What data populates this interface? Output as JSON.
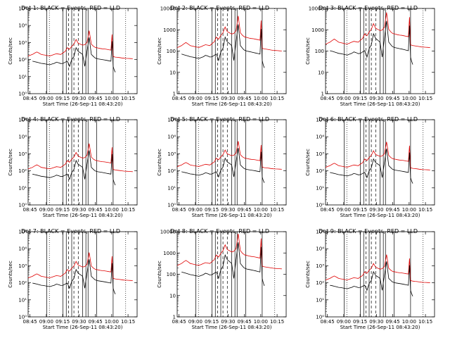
{
  "chart_data": [
    {
      "type": "line",
      "title": "Det 1: BLACK = Events, RED = LLD",
      "yscale": "log",
      "ylim_exp": [
        0,
        5
      ],
      "ytick_labels": [
        "10⁰",
        "10¹",
        "10²",
        "10³",
        "10⁴",
        "10⁵"
      ]
    },
    {
      "type": "line",
      "title": "Det 2: BLACK = Events, RED = LLD",
      "yscale": "log",
      "ylim_exp": [
        0,
        4
      ],
      "ytick_labels": [
        "1",
        "10",
        "100",
        "1000",
        "10000"
      ]
    },
    {
      "type": "line",
      "title": "Det 3: BLACK = Events, RED = LLD",
      "yscale": "log",
      "ylim_exp": [
        0,
        4
      ],
      "ytick_labels": [
        "1",
        "10",
        "100",
        "1000",
        "10000"
      ]
    },
    {
      "type": "line",
      "title": "Det 4: BLACK = Events, RED = LLD",
      "yscale": "log",
      "ylim_exp": [
        0,
        5
      ],
      "ytick_labels": [
        "10⁰",
        "10¹",
        "10²",
        "10³",
        "10⁴",
        "10⁵"
      ]
    },
    {
      "type": "line",
      "title": "Det 5: BLACK = Events, RED = LLD",
      "yscale": "log",
      "ylim_exp": [
        0,
        5
      ],
      "ytick_labels": [
        "10⁰",
        "10¹",
        "10²",
        "10³",
        "10⁴",
        "10⁵"
      ]
    },
    {
      "type": "line",
      "title": "Det 6: BLACK = Events, RED = LLD",
      "yscale": "log",
      "ylim_exp": [
        0,
        5
      ],
      "ytick_labels": [
        "10⁰",
        "10¹",
        "10²",
        "10³",
        "10⁴",
        "10⁵"
      ]
    },
    {
      "type": "line",
      "title": "Det 7: BLACK = Events, RED = LLD",
      "yscale": "log",
      "ylim_exp": [
        0,
        5
      ],
      "ytick_labels": [
        "10⁰",
        "10¹",
        "10²",
        "10³",
        "10⁴",
        "10⁵"
      ]
    },
    {
      "type": "line",
      "title": "Det 8: BLACK = Events, RED = LLD",
      "yscale": "log",
      "ylim_exp": [
        0,
        4
      ],
      "ytick_labels": [
        "1",
        "10",
        "100",
        "1000",
        "10000"
      ]
    },
    {
      "type": "line",
      "title": "Det 9: BLACK = Events, RED = LLD",
      "yscale": "log",
      "ylim_exp": [
        0,
        5
      ],
      "ytick_labels": [
        "10⁰",
        "10¹",
        "10²",
        "10³",
        "10⁴",
        "10⁵"
      ]
    }
  ],
  "shared": {
    "ylabel": "Counts/sec",
    "xlabel": "Start Time (26-Sep-11 08:43:20)",
    "xtick_labels": [
      "08:45",
      "09:00",
      "09:15",
      "09:30",
      "09:45",
      "10:00",
      "10:15"
    ],
    "xtick_minutes": [
      1.67,
      16.67,
      31.67,
      46.67,
      61.67,
      76.67,
      91.67
    ],
    "xlim_minutes": [
      0,
      100
    ],
    "vertical_lines": {
      "dotted_minutes": [
        19.5,
        89.5
      ],
      "solid_minutes": [
        17,
        32,
        35,
        40,
        50,
        53,
        55,
        63,
        78
      ],
      "dashed_minutes": [
        37,
        42,
        46
      ]
    },
    "colors": {
      "events": "#000000",
      "lld": "#e00000"
    },
    "series_names": [
      "Events",
      "LLD"
    ],
    "series": {
      "lld_t": [
        0,
        2,
        4,
        6,
        8,
        10,
        12,
        14,
        16,
        18,
        20,
        22,
        24,
        26,
        28,
        30,
        32,
        34,
        36,
        38,
        40,
        42,
        44,
        46,
        48,
        50,
        52,
        54,
        56,
        58,
        60,
        61,
        62,
        63,
        64,
        66,
        68,
        70,
        72,
        74,
        76,
        77,
        78,
        80,
        82,
        84,
        86,
        88,
        90,
        92,
        94,
        96
      ],
      "lld_v": [
        160,
        180,
        200,
        240,
        280,
        240,
        200,
        190,
        180,
        170,
        165,
        180,
        200,
        220,
        210,
        200,
        250,
        300,
        500,
        400,
        600,
        800,
        1500,
        900,
        800,
        700,
        750,
        1000,
        5000,
        800,
        600,
        550,
        500,
        500,
        480,
        450,
        430,
        420,
        400,
        380,
        360,
        3000,
        150,
        140,
        135,
        130,
        125,
        120,
        118,
        116,
        114,
        112
      ],
      "evt_t": [
        4,
        6,
        8,
        10,
        12,
        14,
        16,
        18,
        20,
        22,
        24,
        26,
        28,
        30,
        32,
        34,
        36,
        38,
        40,
        42,
        44,
        46,
        48,
        50,
        52,
        54,
        56,
        58,
        60,
        61,
        62,
        63,
        64,
        66,
        68,
        70,
        72,
        74,
        76,
        77,
        78,
        79,
        80
      ],
      "evt_v": [
        80,
        75,
        70,
        65,
        60,
        58,
        55,
        52,
        50,
        55,
        60,
        70,
        65,
        58,
        60,
        70,
        80,
        40,
        100,
        150,
        500,
        300,
        250,
        200,
        40,
        300,
        2000,
        200,
        150,
        130,
        120,
        115,
        110,
        105,
        100,
        95,
        90,
        85,
        80,
        1200,
        40,
        25,
        18
      ]
    }
  }
}
